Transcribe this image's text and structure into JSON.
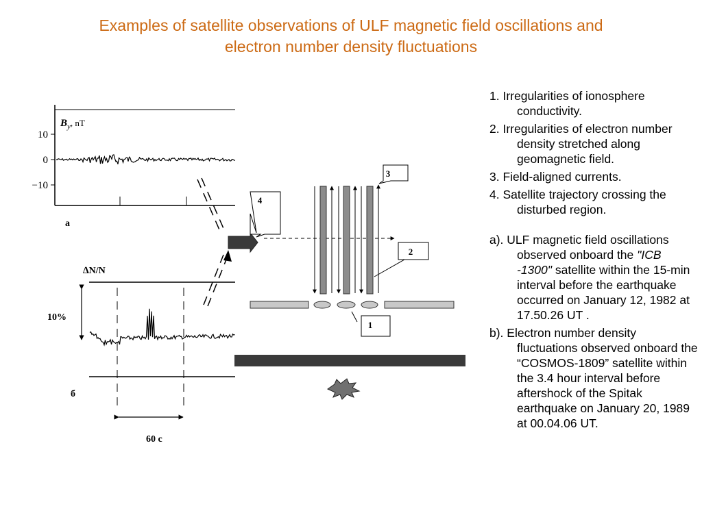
{
  "title": {
    "line1": "Examples of satellite observations of ULF magnetic field oscillations and",
    "line2": "electron number density fluctuations"
  },
  "panel_a": {
    "ylabel_main": "B",
    "ylabel_sub": "y",
    "ylabel_unit": ", nT",
    "ticks": [
      "10",
      "0",
      "−10"
    ],
    "label": "a"
  },
  "panel_b": {
    "ylabel": "∆N/N",
    "scale_label": "10%",
    "time_label": "60 c",
    "label": "б"
  },
  "diagram": {
    "callout_1": "1",
    "callout_2": "2",
    "callout_3": "3",
    "callout_4": "4"
  },
  "notes": {
    "legend": [
      "1. Irregularities of ionosphere conductivity.",
      "2. Irregularities of electron number density stretched along geomagnetic field.",
      "3. Field-aligned currents.",
      "4. Satellite trajectory crossing the disturbed region."
    ],
    "a_prefix": "a). ULF magnetic field oscillations observed onboard the ",
    "a_satellite": "\"ICB -1300\"",
    "a_suffix": " satellite within the 15-min interval before the earthquake occurred on January 12, 1982 at 17.50.26 UT .",
    "b": "b). Electron number density fluctuations observed onboard the “COSMOS-1809” satellite within the 3.4 hour interval before aftershock of the Spitak earthquake on January 20, 1989 at 00.04.06 UT."
  },
  "colors": {
    "title": "#cc6a14",
    "bars": "#8c8c8c",
    "plate": "#c8c8c8",
    "ground": "#3a3a3a",
    "epicenter": "#707070"
  }
}
